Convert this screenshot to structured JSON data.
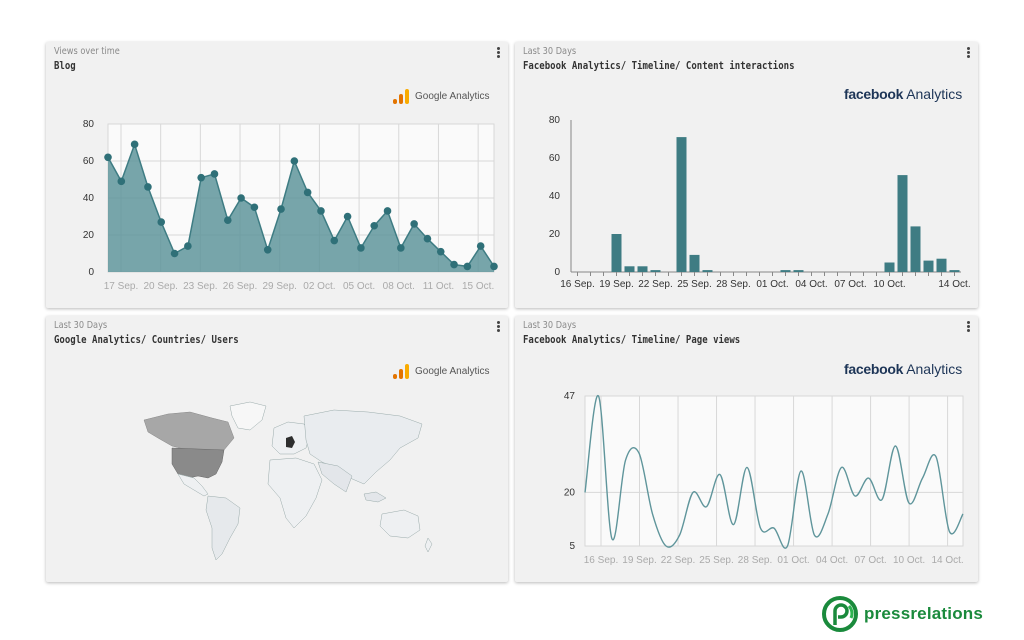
{
  "cards": {
    "blog": {
      "subtitle": "Views over time",
      "title": "Blog",
      "logo_text": "Google Analytics"
    },
    "fb_content": {
      "subtitle": "Last 30 Days",
      "title": "Facebook Analytics/ Timeline/ Content interactions",
      "logo_bold": "facebook",
      "logo_light": "Analytics"
    },
    "ga_countries": {
      "subtitle": "Last 30 Days",
      "title": "Google Analytics/ Countries/ Users",
      "logo_text": "Google Analytics"
    },
    "fb_pageviews": {
      "subtitle": "Last 30 Days",
      "title": "Facebook Analytics/ Timeline/ Page views",
      "logo_bold": "facebook",
      "logo_light": "Analytics"
    }
  },
  "brand": {
    "name": "pressrelations",
    "color": "#1a8a3c"
  },
  "colors": {
    "series": "#3e7c83",
    "series_fill": "#5f959b",
    "grid": "#d8d8d8"
  },
  "chart_data": [
    {
      "id": "blog",
      "type": "area",
      "x_tick_labels": [
        "17 Sep.",
        "20 Sep.",
        "23 Sep.",
        "26 Sep.",
        "29 Sep.",
        "02 Oct.",
        "05 Oct.",
        "08 Oct.",
        "11 Oct.",
        "15 Oct."
      ],
      "y_ticks": [
        0,
        20,
        40,
        60,
        80
      ],
      "ylim": [
        0,
        80
      ],
      "values": [
        62,
        49,
        69,
        46,
        27,
        10,
        14,
        51,
        53,
        28,
        40,
        35,
        12,
        34,
        60,
        43,
        33,
        17,
        30,
        13,
        25,
        33,
        13,
        26,
        18,
        11,
        4,
        3,
        14,
        3
      ],
      "grid": true
    },
    {
      "id": "fb_content",
      "type": "bar",
      "x_tick_labels": [
        "16 Sep.",
        "19 Sep.",
        "22 Sep.",
        "25 Sep.",
        "28 Sep.",
        "01 Oct.",
        "04 Oct.",
        "07 Oct.",
        "10 Oct.",
        "14 Oct."
      ],
      "y_ticks": [
        0,
        20,
        40,
        60,
        80
      ],
      "ylim": [
        0,
        80
      ],
      "values": [
        0,
        0,
        0,
        20,
        3,
        3,
        1,
        0,
        71,
        9,
        1,
        0,
        0,
        0,
        0,
        0,
        1,
        1,
        0,
        0,
        0,
        0,
        0,
        0,
        5,
        51,
        24,
        6,
        7,
        1
      ],
      "grid": false
    },
    {
      "id": "fb_pageviews",
      "type": "line",
      "x_tick_labels": [
        "16 Sep.",
        "19 Sep.",
        "22 Sep.",
        "25 Sep.",
        "28 Sep.",
        "01 Oct.",
        "04 Oct.",
        "07 Oct.",
        "10 Oct.",
        "14 Oct."
      ],
      "y_ticks": [
        5,
        20,
        47
      ],
      "ylim": [
        5,
        47
      ],
      "values": [
        20,
        47,
        7,
        29,
        31,
        14,
        5,
        8,
        20,
        16,
        25,
        11,
        27,
        10,
        10,
        5,
        26,
        8,
        14,
        27,
        19,
        24,
        18,
        33,
        17,
        24,
        30,
        9,
        14
      ],
      "grid": true
    }
  ]
}
